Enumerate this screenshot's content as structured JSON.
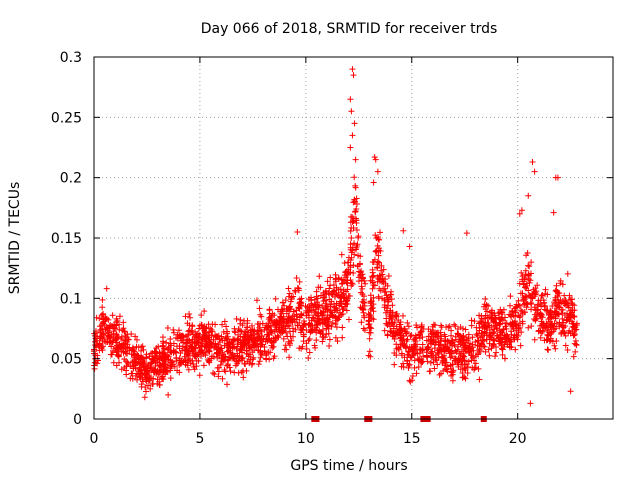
{
  "chart_data": {
    "type": "scatter",
    "title": "Day 066 of 2018, SRMTID for receiver trds",
    "xlabel": "GPS time / hours",
    "ylabel": "SRMTID / TECUs",
    "xlim": [
      0,
      24.5
    ],
    "ylim": [
      0,
      0.3
    ],
    "x_ticks": [
      0,
      5,
      10,
      15,
      20
    ],
    "x_tick_labels": [
      "0",
      "5",
      "10",
      "15",
      "20"
    ],
    "y_ticks": [
      0,
      0.05,
      0.1,
      0.15,
      0.2,
      0.25,
      0.3
    ],
    "y_tick_labels": [
      "0",
      "0.05",
      "0.1",
      "0.15",
      "0.2",
      "0.25",
      "0.3"
    ],
    "grid": true,
    "marker": "plus",
    "color": "#ff0000",
    "gap_color": "#cc0000",
    "series": [
      {
        "name": "SRMTID",
        "profile_x": [
          0,
          0.5,
          1,
          2,
          2.5,
          3,
          4,
          5,
          6,
          7,
          8,
          9,
          9.5,
          10,
          11,
          11.5,
          12,
          12.3,
          12.6,
          13,
          13.3,
          13.6,
          14,
          14.5,
          15,
          15.5,
          16,
          17,
          18,
          18.5,
          19,
          19.5,
          20,
          20.5,
          21,
          21.5,
          22,
          22.5,
          22.8
        ],
        "profile_y": [
          0.055,
          0.075,
          0.065,
          0.05,
          0.04,
          0.045,
          0.055,
          0.065,
          0.055,
          0.06,
          0.07,
          0.08,
          0.09,
          0.08,
          0.09,
          0.095,
          0.11,
          0.17,
          0.11,
          0.075,
          0.14,
          0.11,
          0.085,
          0.065,
          0.055,
          0.06,
          0.06,
          0.055,
          0.06,
          0.075,
          0.075,
          0.07,
          0.08,
          0.11,
          0.085,
          0.08,
          0.09,
          0.09,
          0.075
        ],
        "noise_y": 0.022,
        "point_count": 2700,
        "x_start": 0,
        "x_end": 22.8,
        "data_gaps_x": [
          [
            12.8,
            12.95
          ],
          [
            15.55,
            15.7
          ]
        ],
        "spikes": [
          {
            "x": 12.2,
            "y": 0.29
          },
          {
            "x": 12.25,
            "y": 0.285
          },
          {
            "x": 12.1,
            "y": 0.265
          },
          {
            "x": 12.15,
            "y": 0.255
          },
          {
            "x": 12.3,
            "y": 0.245
          },
          {
            "x": 12.2,
            "y": 0.235
          },
          {
            "x": 12.1,
            "y": 0.225
          },
          {
            "x": 12.35,
            "y": 0.215
          },
          {
            "x": 13.25,
            "y": 0.217
          },
          {
            "x": 13.3,
            "y": 0.215
          },
          {
            "x": 13.4,
            "y": 0.205
          },
          {
            "x": 13.2,
            "y": 0.196
          },
          {
            "x": 20.7,
            "y": 0.213
          },
          {
            "x": 20.8,
            "y": 0.205
          },
          {
            "x": 21.8,
            "y": 0.2
          },
          {
            "x": 21.9,
            "y": 0.2
          },
          {
            "x": 20.1,
            "y": 0.17
          },
          {
            "x": 20.2,
            "y": 0.173
          },
          {
            "x": 21.7,
            "y": 0.171
          },
          {
            "x": 9.6,
            "y": 0.155
          },
          {
            "x": 14.6,
            "y": 0.156
          },
          {
            "x": 17.6,
            "y": 0.154
          },
          {
            "x": 14.9,
            "y": 0.143
          },
          {
            "x": 20.5,
            "y": 0.185
          },
          {
            "x": 0.6,
            "y": 0.108
          },
          {
            "x": 2.4,
            "y": 0.018
          },
          {
            "x": 3.5,
            "y": 0.02
          },
          {
            "x": 20.6,
            "y": 0.013
          },
          {
            "x": 14.9,
            "y": 0.032
          },
          {
            "x": 22.5,
            "y": 0.023
          }
        ],
        "data_gap_markers_x": [
          10.4,
          10.5,
          12.9,
          13.0,
          15.55,
          15.65,
          15.75,
          18.4
        ]
      }
    ]
  }
}
